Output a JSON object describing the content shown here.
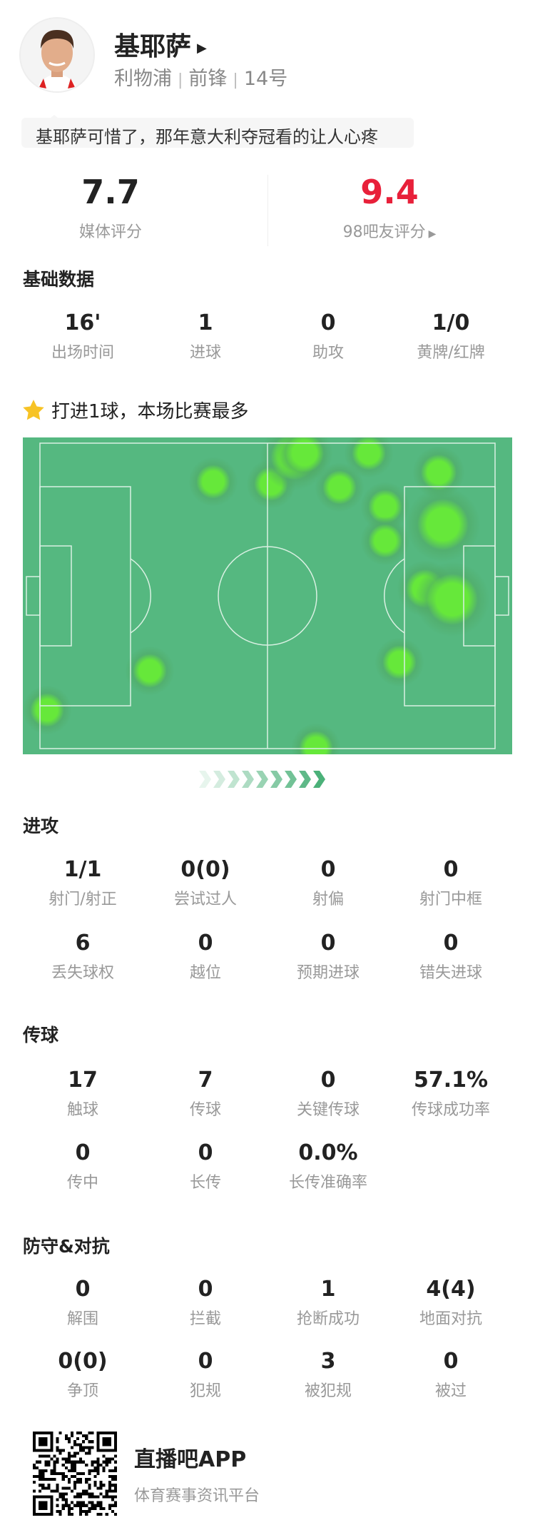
{
  "player": {
    "name": "基耶萨",
    "team": "利物浦",
    "position": "前锋",
    "number": "14号"
  },
  "comment": "基耶萨可惜了，那年意大利夺冠看的让人心疼",
  "ratings": {
    "media": {
      "value": "7.7",
      "label": "媒体评分"
    },
    "fans": {
      "value": "9.4",
      "label": "98吧友评分",
      "color": "#e8203a"
    }
  },
  "basic": {
    "title": "基础数据",
    "stats": [
      {
        "value": "16'",
        "label": "出场时间"
      },
      {
        "value": "1",
        "label": "进球"
      },
      {
        "value": "0",
        "label": "助攻"
      },
      {
        "value": "1/0",
        "label": "黄牌/红牌"
      }
    ]
  },
  "highlight": {
    "icon": "star-icon",
    "text": "打进1球，本场比赛最多"
  },
  "heatmap": {
    "pitch_color": "#55b880",
    "hot_color": "#66e83a"
  },
  "attack": {
    "title": "进攻",
    "stats": [
      {
        "value": "1/1",
        "label": "射门/射正"
      },
      {
        "value": "0(0)",
        "label": "尝试过人"
      },
      {
        "value": "0",
        "label": "射偏"
      },
      {
        "value": "0",
        "label": "射门中框"
      },
      {
        "value": "6",
        "label": "丢失球权"
      },
      {
        "value": "0",
        "label": "越位"
      },
      {
        "value": "0",
        "label": "预期进球"
      },
      {
        "value": "0",
        "label": "错失进球"
      }
    ]
  },
  "passing": {
    "title": "传球",
    "stats": [
      {
        "value": "17",
        "label": "触球"
      },
      {
        "value": "7",
        "label": "传球"
      },
      {
        "value": "0",
        "label": "关键传球"
      },
      {
        "value": "57.1%",
        "label": "传球成功率"
      },
      {
        "value": "0",
        "label": "传中"
      },
      {
        "value": "0",
        "label": "长传"
      },
      {
        "value": "0.0%",
        "label": "长传准确率"
      }
    ]
  },
  "defense": {
    "title": "防守&对抗",
    "stats": [
      {
        "value": "0",
        "label": "解围"
      },
      {
        "value": "0",
        "label": "拦截"
      },
      {
        "value": "1",
        "label": "抢断成功"
      },
      {
        "value": "4(4)",
        "label": "地面对抗"
      },
      {
        "value": "0(0)",
        "label": "争顶"
      },
      {
        "value": "0",
        "label": "犯规"
      },
      {
        "value": "3",
        "label": "被犯规"
      },
      {
        "value": "0",
        "label": "被过"
      }
    ]
  },
  "footer": {
    "app_name": "直播吧APP",
    "tagline": "体育赛事资讯平台"
  }
}
